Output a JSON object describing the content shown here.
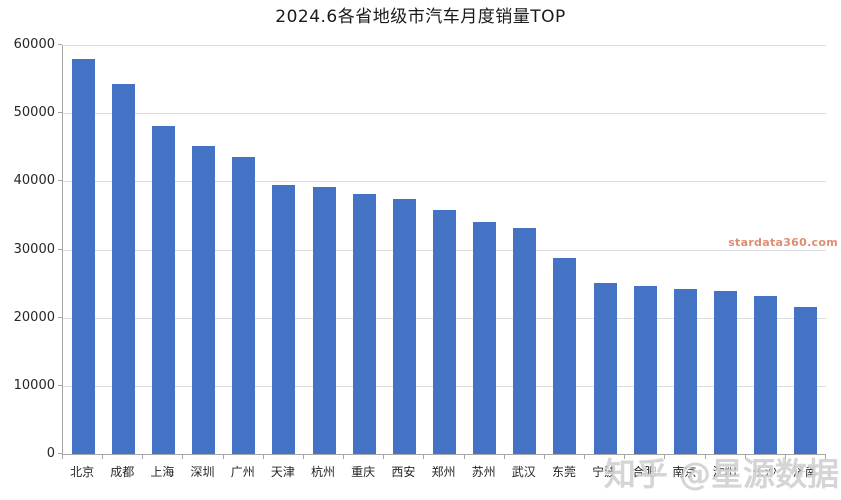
{
  "chart_data": {
    "type": "bar",
    "title": "2024.6各省地级市汽车月度销量TOP",
    "categories": [
      "北京",
      "成都",
      "上海",
      "深圳",
      "广州",
      "天津",
      "杭州",
      "重庆",
      "西安",
      "郑州",
      "苏州",
      "武汉",
      "东莞",
      "宁波",
      "合肥",
      "南京",
      "沈阳",
      "长沙",
      "济南"
    ],
    "values": [
      58000,
      54300,
      48100,
      45200,
      43600,
      39500,
      39200,
      38200,
      37400,
      35800,
      34100,
      33200,
      28800,
      25100,
      24700,
      24200,
      23900,
      23200,
      21600
    ],
    "xlabel": "",
    "ylabel": "",
    "ylim": [
      0,
      60000
    ],
    "ytick_step": 10000,
    "ytick_labels": [
      "0",
      "10000",
      "20000",
      "30000",
      "40000",
      "50000",
      "60000"
    ],
    "grid": true,
    "legend": false,
    "bar_color": "#4472C4"
  },
  "watermarks": {
    "stardata": "stardata360.com",
    "zhihu": "知乎 @星源数据"
  },
  "colors": {
    "bar": "#4472C4",
    "gridline": "#dcdcdc",
    "axis": "#a6a6a6",
    "title_text": "#1a1a1a",
    "label_text": "#262626",
    "stardata_watermark": "#d97858",
    "zhihu_watermark": "#b2b2b2"
  }
}
